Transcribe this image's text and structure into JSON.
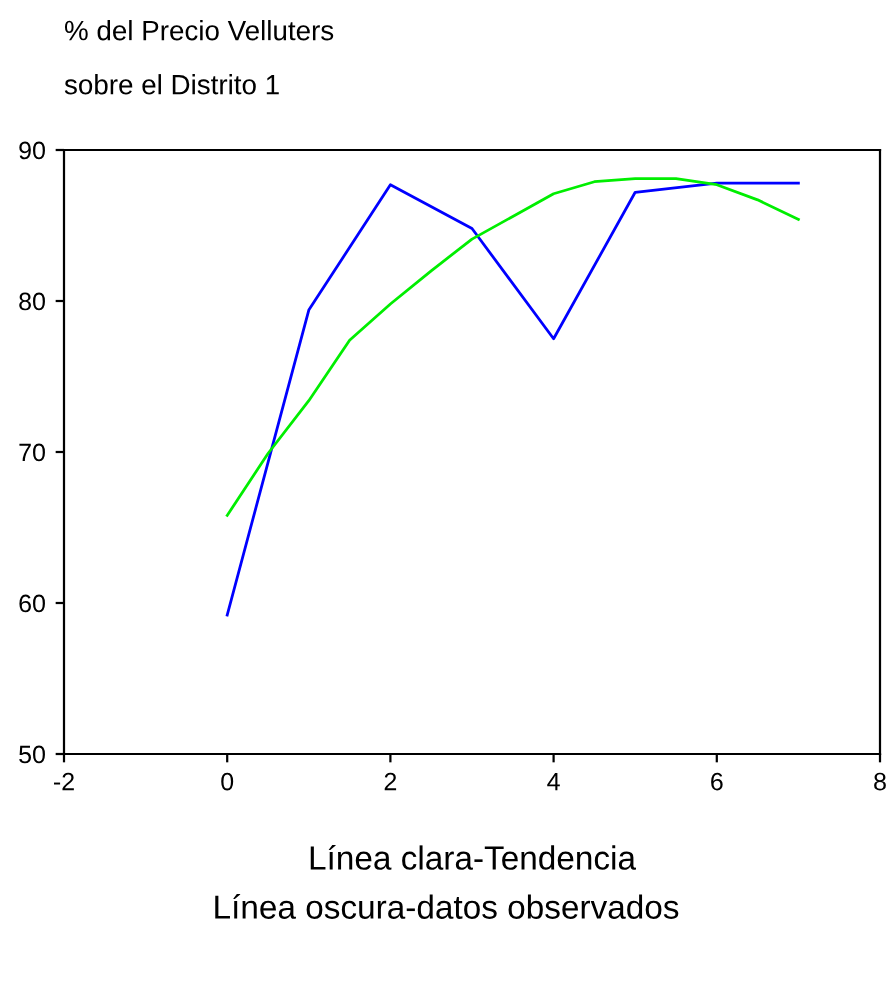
{
  "chart_data": {
    "type": "line",
    "title": "% del Precio Velluters\nsobre el Distrito 1",
    "xlabel": "Línea clara-Tendencia",
    "annotations": [
      "Línea oscura-datos observados"
    ],
    "series": [
      {
        "color": "#0000ff",
        "x": [
          0,
          1,
          2,
          3,
          4,
          5,
          6,
          7
        ],
        "values": [
          59.2,
          79.4,
          87.7,
          84.8,
          77.5,
          87.2,
          87.8,
          87.8
        ]
      },
      {
        "color": "#00ee00",
        "x": [
          0,
          0.5,
          1,
          1.5,
          2,
          2.5,
          3,
          3.5,
          4,
          4.5,
          5,
          5.5,
          6,
          6.5,
          7
        ],
        "values": [
          65.8,
          69.9,
          73.4,
          77.4,
          79.8,
          82.0,
          84.1,
          85.6,
          87.1,
          87.9,
          88.1,
          88.1,
          87.7,
          86.7,
          85.4
        ]
      }
    ],
    "xlim": [
      -2,
      8
    ],
    "xticks": [
      -2,
      0,
      2,
      4,
      6,
      8
    ],
    "ylim": [
      50,
      90
    ],
    "yticks": [
      50,
      60,
      70,
      80,
      90
    ],
    "grid": false,
    "legend": false
  }
}
